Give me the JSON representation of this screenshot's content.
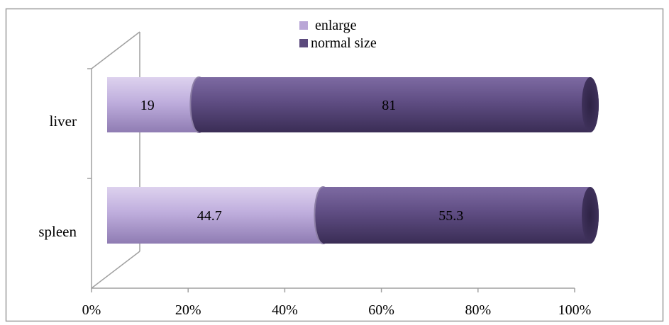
{
  "chart_data": {
    "type": "bar",
    "orientation": "horizontal",
    "stacked": "percent",
    "categories": [
      "liver",
      "spleen"
    ],
    "series": [
      {
        "name": "enlarge",
        "values": [
          19,
          44.7
        ]
      },
      {
        "name": "normal size",
        "values": [
          81,
          55.3
        ]
      }
    ],
    "xlim": [
      0,
      100
    ],
    "x_ticks": [
      "0%",
      "20%",
      "40%",
      "60%",
      "80%",
      "100%"
    ],
    "title": "",
    "xlabel": "",
    "ylabel": "",
    "grid": false,
    "legend_position": "top-center",
    "colors": {
      "enlarge": "#b9a6d6",
      "normal size": "#5c4a7d",
      "frame": "#9a9a9a"
    }
  }
}
